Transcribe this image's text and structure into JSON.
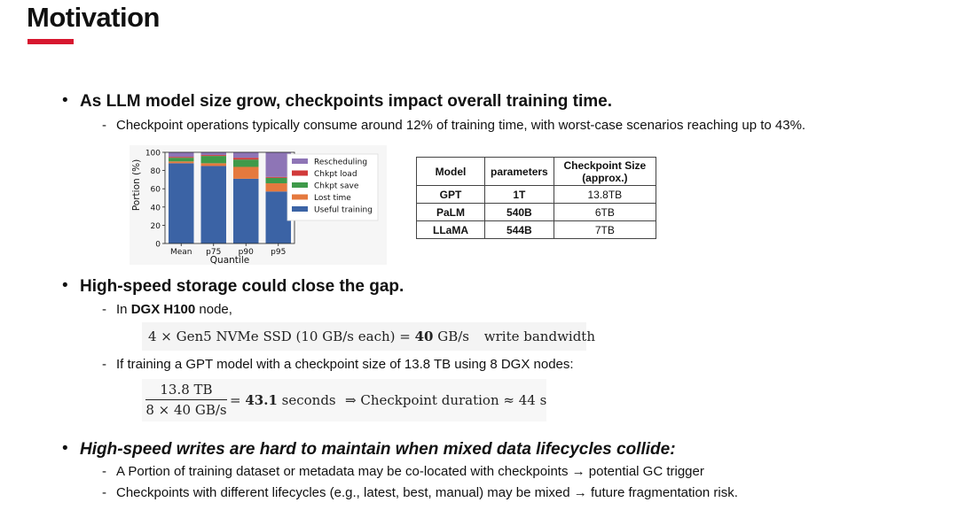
{
  "slide": {
    "title": "Motivation",
    "bullets": [
      {
        "text": "As LLM model size grow, checkpoints impact overall training time.",
        "subs": [
          "Checkpoint operations typically consume around 12% of training time, with worst-case scenarios reaching up to 43%."
        ]
      },
      {
        "text": "High-speed storage could close the gap.",
        "sub1_prefix": "In ",
        "sub1_bold": "DGX H100",
        "sub1_suffix": " node,",
        "formula1": {
          "left": "4 × Gen5 NVMe SSD (10 GB/s each) = ",
          "bold": "40",
          "unit": " GB/s",
          "note": "write bandwidth"
        },
        "sub2": "If training a GPT model with a checkpoint size of 13.8 TB using 8 DGX nodes:",
        "formula2": {
          "numerator": "13.8 TB",
          "denominator": "8 × 40 GB/s",
          "eq": "= ",
          "bold": "43.1",
          "unit": " seconds",
          "arrow": "⇒ Checkpoint duration ≈ 44 s"
        }
      },
      {
        "text": "High-speed writes are hard to maintain when mixed data lifecycles collide:",
        "subs": [
          "A Portion of training dataset or metadata may be co-located with checkpoints → potential GC trigger",
          "Checkpoints with different lifecycles (e.g., latest, best, manual) may be mixed → future fragmentation risk."
        ]
      }
    ]
  },
  "table": {
    "headers": [
      "Model",
      "parameters",
      "Checkpoint Size (approx.)"
    ],
    "rows": [
      [
        "GPT",
        "1T",
        "13.8TB"
      ],
      [
        "PaLM",
        "540B",
        "6TB"
      ],
      [
        "LLaMA",
        "544B",
        "7TB"
      ]
    ]
  },
  "chart_data": {
    "type": "bar",
    "stacked": true,
    "categories": [
      "Mean",
      "p75",
      "p90",
      "p95"
    ],
    "xlabel": "Quantile",
    "ylabel": "Portion (%)",
    "ylim": [
      0,
      100
    ],
    "yticks": [
      "0",
      "20",
      "40",
      "60",
      "80",
      "100"
    ],
    "legend_position": "right",
    "series": [
      {
        "name": "Useful training",
        "color": "#3b63a5",
        "values": [
          88,
          85,
          71,
          57
        ]
      },
      {
        "name": "Lost time",
        "color": "#e5793e",
        "values": [
          2,
          3,
          13,
          9
        ]
      },
      {
        "name": "Chkpt save",
        "color": "#3f9a4a",
        "values": [
          4,
          8,
          8,
          6
        ]
      },
      {
        "name": "Chkpt load",
        "color": "#d13a3a",
        "values": [
          1,
          1,
          2,
          1
        ]
      },
      {
        "name": "Rescheduling",
        "color": "#8e75b6",
        "values": [
          5,
          3,
          6,
          27
        ]
      }
    ]
  }
}
